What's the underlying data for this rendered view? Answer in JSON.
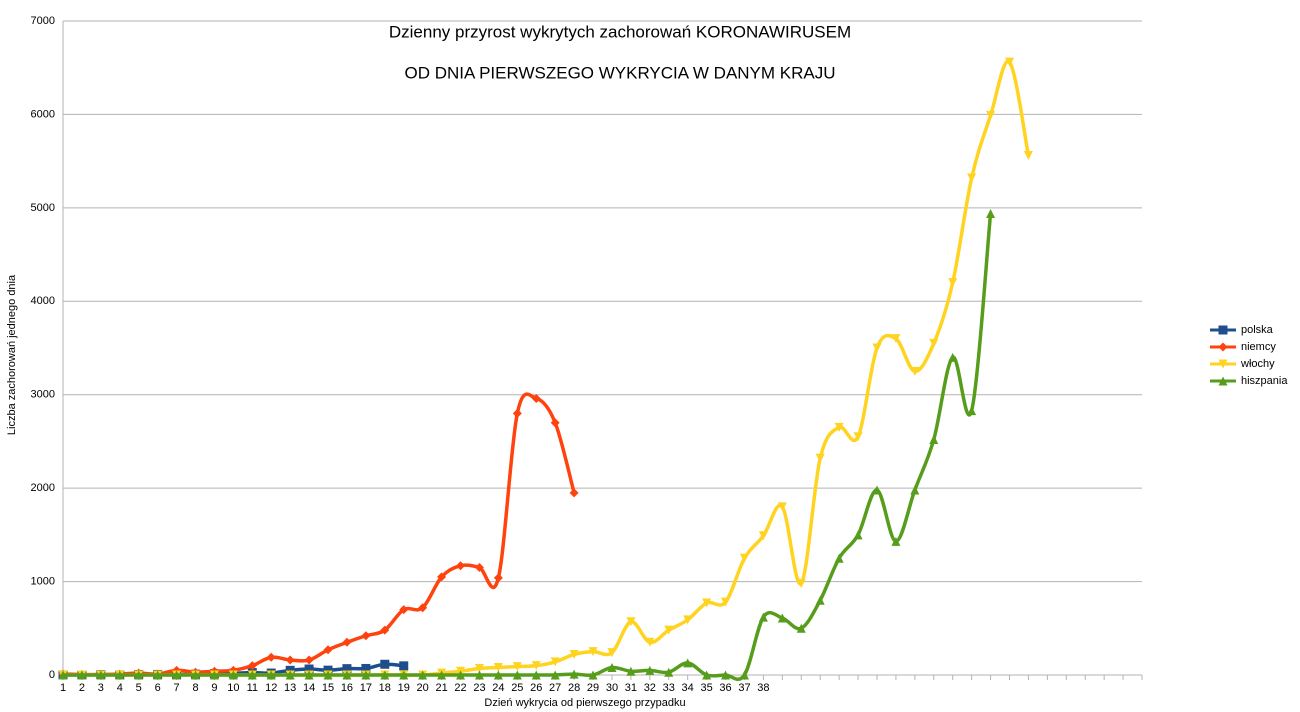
{
  "chart_data": {
    "type": "line",
    "title": "Dzienny przyrost wykrytych zachorowań KORONAWIRUSEM",
    "subtitle": "OD DNIA PIERWSZEGO WYKRYCIA W DANYM KRAJU",
    "x_label": "Dzień wykrycia od pierwszego przypadku",
    "y_label": "Liczba zachorowań jednego dnia",
    "categories": [
      "1",
      "2",
      "3",
      "4",
      "5",
      "6",
      "7",
      "8",
      "9",
      "10",
      "11",
      "12",
      "13",
      "14",
      "15",
      "16",
      "17",
      "18",
      "19",
      "20",
      "21",
      "22",
      "23",
      "24",
      "25",
      "26",
      "27",
      "28",
      "29",
      "30",
      "31",
      "32",
      "33",
      "34",
      "35",
      "36",
      "37",
      "38",
      null,
      null,
      null,
      null,
      null,
      null,
      null,
      null,
      null,
      null,
      null,
      null,
      null,
      null,
      null,
      null,
      null,
      null,
      null,
      null
    ],
    "ylim": [
      0,
      7000
    ],
    "yticks": [
      0,
      1000,
      2000,
      3000,
      4000,
      5000,
      6000,
      7000
    ],
    "grid": true,
    "legend": "right",
    "series": [
      {
        "name": "polska",
        "color": "#1f4e8c",
        "marker": "square",
        "values": [
          1,
          0,
          4,
          1,
          5,
          6,
          5,
          9,
          14,
          19,
          26,
          21,
          50,
          64,
          52,
          68,
          70,
          115,
          98,
          null,
          null,
          null,
          null,
          null,
          null,
          null,
          null,
          null,
          null,
          null,
          null,
          null,
          null,
          null,
          null,
          null,
          null,
          null,
          null,
          null,
          null,
          null,
          null,
          null,
          null,
          null,
          null,
          null,
          null,
          null,
          null,
          null,
          null,
          null,
          null,
          null,
          null,
          null
        ]
      },
      {
        "name": "niemcy",
        "color": "#ff420e",
        "marker": "diamond",
        "values": [
          10,
          5,
          5,
          10,
          20,
          10,
          50,
          30,
          40,
          50,
          100,
          190,
          160,
          160,
          270,
          350,
          420,
          480,
          700,
          720,
          1050,
          1170,
          1150,
          1040,
          2800,
          2960,
          2700,
          1950,
          null,
          null,
          null,
          null,
          null,
          null,
          null,
          null,
          null,
          null,
          null,
          null,
          null,
          null,
          null,
          null,
          null,
          null,
          null,
          null,
          null,
          null,
          null,
          null,
          null,
          null,
          null,
          null,
          null,
          null
        ]
      },
      {
        "name": "włochy",
        "color": "#ffd320",
        "marker": "triangle-down",
        "values": [
          0,
          0,
          0,
          0,
          0,
          0,
          0,
          0,
          0,
          0,
          0,
          0,
          0,
          0,
          0,
          0,
          0,
          0,
          0,
          0,
          20,
          40,
          70,
          80,
          90,
          100,
          140,
          220,
          250,
          240,
          570,
          350,
          480,
          590,
          770,
          780,
          1250,
          1490,
          1800,
          980,
          2320,
          2650,
          2550,
          3500,
          3600,
          3250,
          3550,
          4200,
          5320,
          5990,
          6560,
          5560,
          null,
          null,
          null,
          null,
          null,
          null
        ]
      },
      {
        "name": "hiszpania",
        "color": "#579d1c",
        "marker": "triangle-up",
        "values": [
          0,
          0,
          0,
          0,
          0,
          0,
          0,
          0,
          0,
          0,
          0,
          0,
          0,
          0,
          0,
          0,
          0,
          0,
          0,
          0,
          0,
          0,
          0,
          0,
          0,
          0,
          0,
          10,
          0,
          80,
          40,
          50,
          30,
          130,
          0,
          0,
          0,
          620,
          610,
          500,
          800,
          1250,
          1500,
          1980,
          1430,
          1980,
          2520,
          3400,
          2830,
          4940,
          null,
          null,
          null,
          null,
          null,
          null,
          null,
          null
        ]
      }
    ]
  }
}
